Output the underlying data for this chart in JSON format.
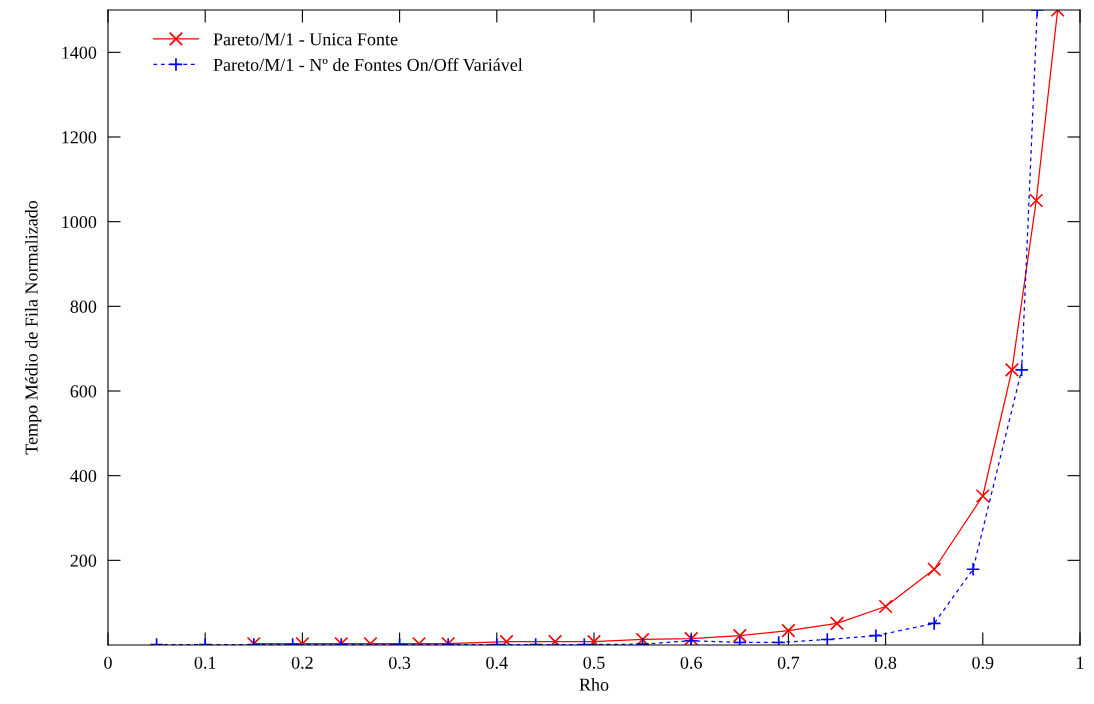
{
  "chart_data": {
    "type": "line",
    "xlabel": "Rho",
    "ylabel": "Tempo Médio de Fila Normalizado",
    "xlim": [
      0,
      1
    ],
    "ylim": [
      0,
      1500
    ],
    "xticks": [
      0,
      0.1,
      0.2,
      0.3,
      0.4,
      0.5,
      0.6,
      0.7,
      0.8,
      0.9,
      1
    ],
    "yticks": [
      200,
      400,
      600,
      800,
      1000,
      1200,
      1400
    ],
    "grid": false,
    "legend": "top left",
    "series": [
      {
        "name": "Pareto/M/1 - Unica Fonte",
        "color": "#ff0000",
        "marker": "cross",
        "line_style": "solid",
        "x": [
          0.15,
          0.2,
          0.24,
          0.27,
          0.32,
          0.35,
          0.41,
          0.46,
          0.5,
          0.55,
          0.6,
          0.65,
          0.7,
          0.75,
          0.8,
          0.85,
          0.9,
          0.93,
          0.955,
          0.977
        ],
        "values": [
          3,
          3,
          3,
          3,
          3,
          3,
          8,
          8,
          8,
          13,
          15,
          22,
          34,
          51,
          91,
          179,
          352,
          650,
          1050,
          1500
        ]
      },
      {
        "name": "Pareto/M/1 - Nº de Fontes On/Off Variável",
        "color": "#0000ff",
        "marker": "plus",
        "line_style": "dashed",
        "x": [
          0.05,
          0.1,
          0.15,
          0.19,
          0.24,
          0.3,
          0.35,
          0.4,
          0.44,
          0.49,
          0.55,
          0.6,
          0.65,
          0.69,
          0.74,
          0.79,
          0.85,
          0.89,
          0.94,
          0.956
        ],
        "values": [
          1,
          1,
          1,
          1,
          1,
          1,
          1,
          1,
          1,
          1,
          2,
          10,
          6,
          6,
          13,
          22,
          51,
          179,
          650,
          1500
        ]
      }
    ]
  }
}
